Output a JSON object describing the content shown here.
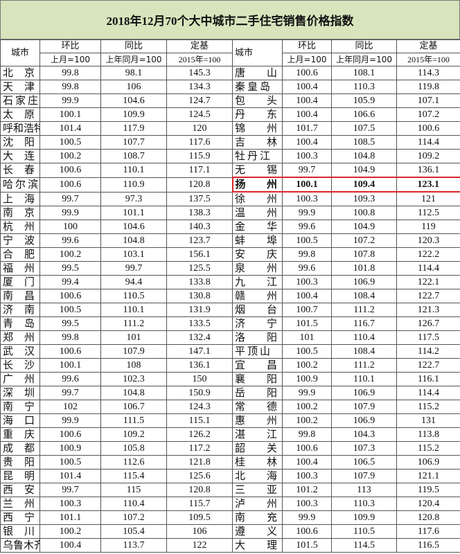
{
  "title": "2018年12月70个大中城市二手住宅销售价格指数",
  "highlight_color": "#d9262b",
  "header_bg": "#d8e4bc",
  "headers": {
    "city": "城市",
    "mom": "环比",
    "mom_base": "上月=100",
    "yoy": "同比",
    "yoy_base": "上年同月=100",
    "fixed": "定基",
    "fixed_base": "2015年=100"
  },
  "highlighted_city": "扬州",
  "rows": [
    [
      [
        "北京",
        "99.8",
        "98.1",
        "145.3"
      ],
      [
        "唐山",
        "100.6",
        "108.1",
        "114.3"
      ]
    ],
    [
      [
        "天津",
        "99.8",
        "106",
        "134.3"
      ],
      [
        "秦皇岛",
        "100.4",
        "110.3",
        "119.8"
      ]
    ],
    [
      [
        "石家庄",
        "99.9",
        "104.6",
        "124.7"
      ],
      [
        "包头",
        "100.4",
        "105.9",
        "107.1"
      ]
    ],
    [
      [
        "太原",
        "100.1",
        "109.9",
        "124.5"
      ],
      [
        "丹东",
        "100.4",
        "106.6",
        "107.2"
      ]
    ],
    [
      [
        "呼和浩特",
        "101.4",
        "117.9",
        "120"
      ],
      [
        "锦州",
        "101.7",
        "107.5",
        "100.6"
      ]
    ],
    [
      [
        "沈阳",
        "100.5",
        "107.7",
        "117.6"
      ],
      [
        "吉林",
        "100.4",
        "108.5",
        "114.4"
      ]
    ],
    [
      [
        "大连",
        "100.2",
        "108.7",
        "115.9"
      ],
      [
        "牡丹江",
        "100.3",
        "104.8",
        "109.2"
      ]
    ],
    [
      [
        "长春",
        "100.6",
        "110.1",
        "117.1"
      ],
      [
        "无锡",
        "99.7",
        "104.9",
        "136.1"
      ]
    ],
    [
      [
        "哈尔滨",
        "100.6",
        "110.9",
        "120.8"
      ],
      [
        "扬州",
        "100.1",
        "109.4",
        "123.1"
      ]
    ],
    [
      [
        "上海",
        "99.7",
        "97.3",
        "137.5"
      ],
      [
        "徐州",
        "100.3",
        "109.3",
        "121"
      ]
    ],
    [
      [
        "南京",
        "99.9",
        "101.1",
        "138.3"
      ],
      [
        "温州",
        "99.9",
        "100.8",
        "112.5"
      ]
    ],
    [
      [
        "杭州",
        "100",
        "104.6",
        "140.3"
      ],
      [
        "金华",
        "99.6",
        "104.9",
        "119"
      ]
    ],
    [
      [
        "宁波",
        "99.6",
        "104.8",
        "123.7"
      ],
      [
        "蚌埠",
        "100.5",
        "107.2",
        "120.3"
      ]
    ],
    [
      [
        "合肥",
        "100.2",
        "103.1",
        "156.1"
      ],
      [
        "安庆",
        "99.8",
        "107.8",
        "122.2"
      ]
    ],
    [
      [
        "福州",
        "99.5",
        "99.7",
        "125.5"
      ],
      [
        "泉州",
        "99.6",
        "101.8",
        "114.4"
      ]
    ],
    [
      [
        "厦门",
        "99.4",
        "94.4",
        "133.8"
      ],
      [
        "九江",
        "100.3",
        "106.9",
        "122.1"
      ]
    ],
    [
      [
        "南昌",
        "100.6",
        "110.5",
        "130.8"
      ],
      [
        "赣州",
        "100.4",
        "108.4",
        "122.7"
      ]
    ],
    [
      [
        "济南",
        "100.5",
        "110.1",
        "131.9"
      ],
      [
        "烟台",
        "100.7",
        "111.2",
        "121.3"
      ]
    ],
    [
      [
        "青岛",
        "99.5",
        "111.2",
        "133.5"
      ],
      [
        "济宁",
        "101.5",
        "116.7",
        "126.7"
      ]
    ],
    [
      [
        "郑州",
        "99.8",
        "101",
        "132.4"
      ],
      [
        "洛阳",
        "101",
        "110.4",
        "117.5"
      ]
    ],
    [
      [
        "武汉",
        "100.6",
        "107.9",
        "147.1"
      ],
      [
        "平顶山",
        "100.5",
        "108.4",
        "114.2"
      ]
    ],
    [
      [
        "长沙",
        "100.1",
        "108",
        "136.1"
      ],
      [
        "宜昌",
        "100.2",
        "111.2",
        "122.7"
      ]
    ],
    [
      [
        "广州",
        "99.6",
        "102.3",
        "150"
      ],
      [
        "襄阳",
        "100.9",
        "110.1",
        "116.1"
      ]
    ],
    [
      [
        "深圳",
        "99.7",
        "104.8",
        "150.9"
      ],
      [
        "岳阳",
        "99.9",
        "106.9",
        "114.4"
      ]
    ],
    [
      [
        "南宁",
        "102",
        "106.7",
        "124.3"
      ],
      [
        "常德",
        "100.2",
        "107.9",
        "115.2"
      ]
    ],
    [
      [
        "海口",
        "99.9",
        "111.5",
        "115.1"
      ],
      [
        "惠州",
        "100.2",
        "106.9",
        "131"
      ]
    ],
    [
      [
        "重庆",
        "100.6",
        "109.2",
        "126.2"
      ],
      [
        "湛江",
        "99.8",
        "104.3",
        "113.8"
      ]
    ],
    [
      [
        "成都",
        "100.9",
        "105.8",
        "117.2"
      ],
      [
        "韶关",
        "100.6",
        "107.3",
        "115.2"
      ]
    ],
    [
      [
        "贵阳",
        "100.5",
        "112.6",
        "121.8"
      ],
      [
        "桂林",
        "100.4",
        "106.5",
        "106.9"
      ]
    ],
    [
      [
        "昆明",
        "101.4",
        "115.4",
        "125.6"
      ],
      [
        "北海",
        "100.3",
        "107.9",
        "121.1"
      ]
    ],
    [
      [
        "西安",
        "99.7",
        "115",
        "120.8"
      ],
      [
        "三亚",
        "101.2",
        "113",
        "119.5"
      ]
    ],
    [
      [
        "兰州",
        "100.3",
        "110.4",
        "115.7"
      ],
      [
        "泸州",
        "100.3",
        "110.3",
        "120.4"
      ]
    ],
    [
      [
        "西宁",
        "101.1",
        "107.2",
        "109.5"
      ],
      [
        "南充",
        "99.9",
        "109.9",
        "120.8"
      ]
    ],
    [
      [
        "银川",
        "100.2",
        "105.4",
        "106"
      ],
      [
        "遵义",
        "100.6",
        "110.5",
        "117.6"
      ]
    ],
    [
      [
        "乌鲁木齐",
        "100.4",
        "113.7",
        "122"
      ],
      [
        "大理",
        "101.5",
        "114.5",
        "116.5"
      ]
    ]
  ]
}
